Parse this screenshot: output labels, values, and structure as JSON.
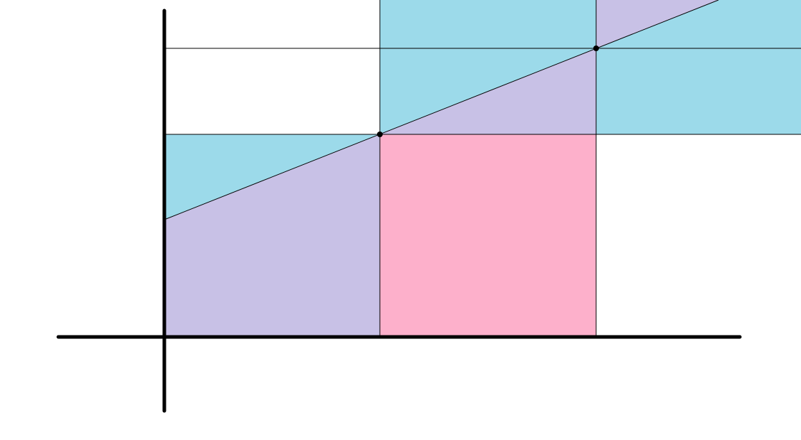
{
  "colors": {
    "cyan": "#9cdaea",
    "lavender": "#c8c1e6",
    "pink": "#fdb0cb",
    "line": "#000000",
    "background": "#ffffff"
  },
  "regions": [
    {
      "name": "cyan-region-upper-right",
      "color": "cyan"
    },
    {
      "name": "lavender-band-upper",
      "color": "lavender"
    },
    {
      "name": "cyan-triangle-left",
      "color": "cyan"
    },
    {
      "name": "lavender-region-lower-left",
      "color": "lavender"
    },
    {
      "name": "pink-rectangle",
      "color": "pink"
    }
  ],
  "points": [
    {
      "name": "intersection-point-1"
    },
    {
      "name": "intersection-point-2"
    }
  ]
}
